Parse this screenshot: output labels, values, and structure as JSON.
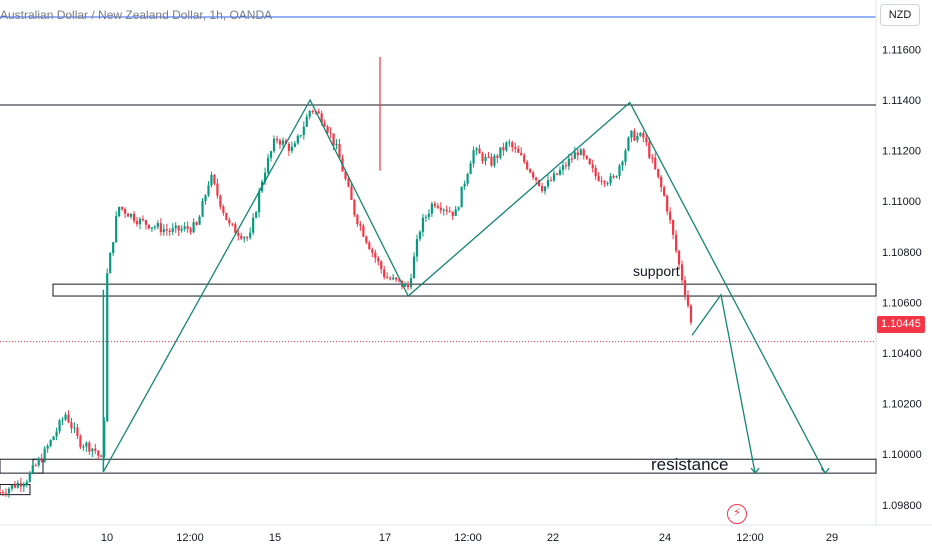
{
  "header": {
    "legend": "Australian Dollar / New Zealand Dollar, 1h, OANDA",
    "currency": "NZD"
  },
  "current_price": {
    "label": "1.10445",
    "value": 1.10445,
    "color": "#f23645"
  },
  "annotations": {
    "support": "support",
    "resistance": "resistance"
  },
  "colors": {
    "up": "#089981",
    "down": "#f23645",
    "drawing": "#138575",
    "zone": "#131722",
    "legend_line": "#2962ff"
  },
  "icons": {
    "flash": "lightning-icon"
  },
  "chart_data": {
    "type": "candlestick",
    "symbol": "AUDNZD",
    "timeframe": "1h",
    "x_ticks": [
      "10",
      "12:00",
      "15",
      "12:00",
      "17",
      "12:00",
      "22",
      "12:00",
      "24",
      "12:00",
      "29"
    ],
    "y_ticks": [
      "1.11600",
      "1.11400",
      "1.11200",
      "1.11000",
      "1.10800",
      "1.10600",
      "1.10445",
      "1.10400",
      "1.10200",
      "1.10000",
      "1.09800"
    ],
    "ylim": [
      1.0972,
      1.1172
    ],
    "zones": [
      {
        "label": "support",
        "from": 1.10625,
        "to": 1.10672
      },
      {
        "label": "resistance",
        "from": 1.09925,
        "to": 1.0998
      }
    ],
    "horizontal_lines": [
      1.1138
    ],
    "path": [
      {
        "x": 0.118,
        "y": 1.0993
      },
      {
        "x": 0.354,
        "y": 1.114
      },
      {
        "x": 0.466,
        "y": 1.10625
      },
      {
        "x": 0.719,
        "y": 1.1139
      },
      {
        "x": 0.942,
        "y": 1.09925
      }
    ],
    "projection": [
      {
        "x": 0.79,
        "y": 1.1047
      },
      {
        "x": 0.823,
        "y": 1.1063
      },
      {
        "x": 0.862,
        "y": 1.09925
      }
    ],
    "price_path": [
      [
        0.0,
        1.0985
      ],
      [
        0.03,
        1.099
      ],
      [
        0.05,
        1.1
      ],
      [
        0.075,
        1.1016
      ],
      [
        0.09,
        1.1005
      ],
      [
        0.108,
        1.1002
      ],
      [
        0.118,
        1.0996
      ],
      [
        0.122,
        1.107
      ],
      [
        0.135,
        1.1098
      ],
      [
        0.16,
        1.1092
      ],
      [
        0.195,
        1.1088
      ],
      [
        0.225,
        1.109
      ],
      [
        0.24,
        1.111
      ],
      [
        0.262,
        1.109
      ],
      [
        0.285,
        1.1085
      ],
      [
        0.3,
        1.111
      ],
      [
        0.315,
        1.1125
      ],
      [
        0.335,
        1.112
      ],
      [
        0.355,
        1.1137
      ],
      [
        0.37,
        1.1132
      ],
      [
        0.385,
        1.112
      ],
      [
        0.405,
        1.1095
      ],
      [
        0.425,
        1.108
      ],
      [
        0.44,
        1.107
      ],
      [
        0.466,
        1.1066
      ],
      [
        0.48,
        1.109
      ],
      [
        0.495,
        1.11
      ],
      [
        0.52,
        1.1095
      ],
      [
        0.54,
        1.112
      ],
      [
        0.56,
        1.1115
      ],
      [
        0.58,
        1.1123
      ],
      [
        0.6,
        1.1115
      ],
      [
        0.62,
        1.1105
      ],
      [
        0.64,
        1.1112
      ],
      [
        0.66,
        1.112
      ],
      [
        0.68,
        1.111
      ],
      [
        0.7,
        1.1108
      ],
      [
        0.72,
        1.1126
      ],
      [
        0.735,
        1.1125
      ],
      [
        0.75,
        1.111
      ],
      [
        0.76,
        1.11
      ],
      [
        0.775,
        1.1075
      ],
      [
        0.785,
        1.106
      ],
      [
        0.792,
        1.10445
      ]
    ]
  }
}
